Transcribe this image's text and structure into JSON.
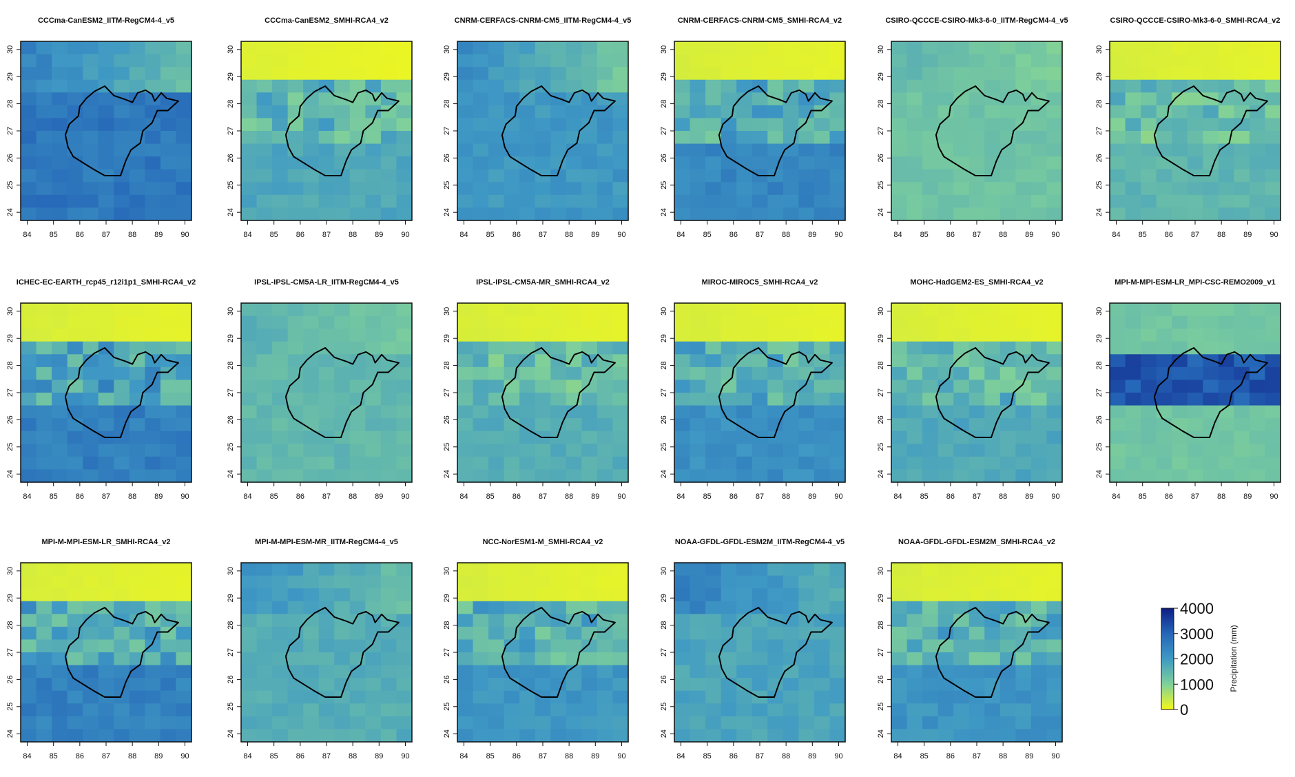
{
  "chart_data": {
    "type": "heatmap",
    "colorbar": {
      "label": "Precipitation (mm)",
      "ticks": [
        "4000",
        "3000",
        "2000",
        "1000",
        "0"
      ],
      "tick_values": [
        4000,
        3000,
        2000,
        1000,
        0
      ],
      "range": [
        0,
        4000
      ],
      "colors": [
        "#f4f81a",
        "#7fd09a",
        "#3f99c4",
        "#2566b8",
        "#0d1d84"
      ]
    },
    "x_ticks": [
      "84",
      "85",
      "86",
      "87",
      "88",
      "89",
      "90"
    ],
    "y_ticks": [
      "24",
      "25",
      "26",
      "27",
      "28",
      "29",
      "30"
    ],
    "x_range": [
      83.75,
      90.25
    ],
    "y_range": [
      23.7,
      30.3
    ],
    "grid_cols": 11,
    "grid_rows": 14,
    "panels": [
      {
        "title": "CCCma-CanESM2_IITM-RegCM4-4_v5",
        "pattern": "regcm",
        "base": 2450,
        "north": 1350,
        "south": 2650
      },
      {
        "title": "CCCma-CanESM2_SMHI-RCA4_v2",
        "pattern": "rca",
        "base": 1800,
        "north": 200,
        "south": 1750
      },
      {
        "title": "CNRM-CERFACS-CNRM-CM5_IITM-RegCM4-4_v5",
        "pattern": "regcm",
        "base": 2250,
        "north": 1150,
        "south": 2050
      },
      {
        "title": "CNRM-CERFACS-CNRM-CM5_SMHI-RCA4_v2",
        "pattern": "rca",
        "base": 2050,
        "north": 250,
        "south": 2350
      },
      {
        "title": "CSIRO-QCCCE-CSIRO-Mk3-6-0_IITM-RegCM4-4_v5",
        "pattern": "regcm",
        "base": 1450,
        "north": 1050,
        "south": 1250
      },
      {
        "title": "CSIRO-QCCCE-CSIRO-Mk3-6-0_SMHI-RCA4_v2",
        "pattern": "rca",
        "base": 1600,
        "north": 250,
        "south": 1500
      },
      {
        "title": "ICHEC-EC-EARTH_rcp45_r12i1p1_SMHI-RCA4_v2",
        "pattern": "rca",
        "base": 2200,
        "north": 250,
        "south": 2500
      },
      {
        "title": "IPSL-IPSL-CM5A-LR_IITM-RegCM4-4_v5",
        "pattern": "regcm",
        "base": 1550,
        "north": 1150,
        "south": 1450
      },
      {
        "title": "IPSL-IPSL-CM5A-MR_SMHI-RCA4_v2",
        "pattern": "rca",
        "base": 1700,
        "north": 250,
        "south": 1650
      },
      {
        "title": "MIROC-MIROC5_SMHI-RCA4_v2",
        "pattern": "rca",
        "base": 2000,
        "north": 250,
        "south": 2200
      },
      {
        "title": "MOHC-HadGEM2-ES_SMHI-RCA4_v2",
        "pattern": "rca",
        "base": 1800,
        "north": 250,
        "south": 1750
      },
      {
        "title": "MPI-M-MPI-ESM-LR_MPI-CSC-REMO2009_v1",
        "pattern": "remo",
        "base": 1200,
        "north": 950,
        "south": 1100
      },
      {
        "title": "MPI-M-MPI-ESM-LR_SMHI-RCA4_v2",
        "pattern": "rca",
        "base": 2100,
        "north": 250,
        "south": 2450
      },
      {
        "title": "MPI-M-MPI-ESM-MR_IITM-RegCM4-4_v5",
        "pattern": "regcm",
        "base": 2150,
        "north": 1350,
        "south": 1650
      },
      {
        "title": "NCC-NorESM1-M_SMHI-RCA4_v2",
        "pattern": "rca",
        "base": 1900,
        "north": 250,
        "south": 2050
      },
      {
        "title": "NOAA-GFDL-GFDL-ESM2M_IITM-RegCM4-4_v5",
        "pattern": "regcm",
        "base": 2450,
        "north": 1650,
        "south": 1800
      },
      {
        "title": "NOAA-GFDL-GFDL-ESM2M_SMHI-RCA4_v2",
        "pattern": "rca",
        "base": 1950,
        "north": 250,
        "south": 2100
      }
    ],
    "basin_outline_lonlat": [
      [
        86.55,
        28.45
      ],
      [
        86.95,
        28.65
      ],
      [
        87.3,
        28.3
      ],
      [
        87.75,
        28.15
      ],
      [
        88.0,
        28.05
      ],
      [
        88.2,
        28.4
      ],
      [
        88.5,
        28.5
      ],
      [
        88.75,
        28.35
      ],
      [
        88.85,
        28.1
      ],
      [
        89.1,
        28.4
      ],
      [
        89.3,
        28.2
      ],
      [
        89.75,
        28.1
      ],
      [
        89.35,
        27.75
      ],
      [
        88.95,
        27.75
      ],
      [
        88.75,
        27.3
      ],
      [
        88.4,
        27.0
      ],
      [
        88.3,
        26.55
      ],
      [
        87.95,
        26.3
      ],
      [
        87.75,
        25.9
      ],
      [
        87.55,
        25.35
      ],
      [
        86.95,
        25.35
      ],
      [
        86.5,
        25.6
      ],
      [
        85.75,
        26.05
      ],
      [
        85.55,
        26.4
      ],
      [
        85.45,
        26.85
      ],
      [
        85.6,
        27.25
      ],
      [
        85.95,
        27.55
      ],
      [
        86.0,
        27.9
      ],
      [
        86.25,
        28.2
      ],
      [
        86.55,
        28.45
      ]
    ]
  }
}
